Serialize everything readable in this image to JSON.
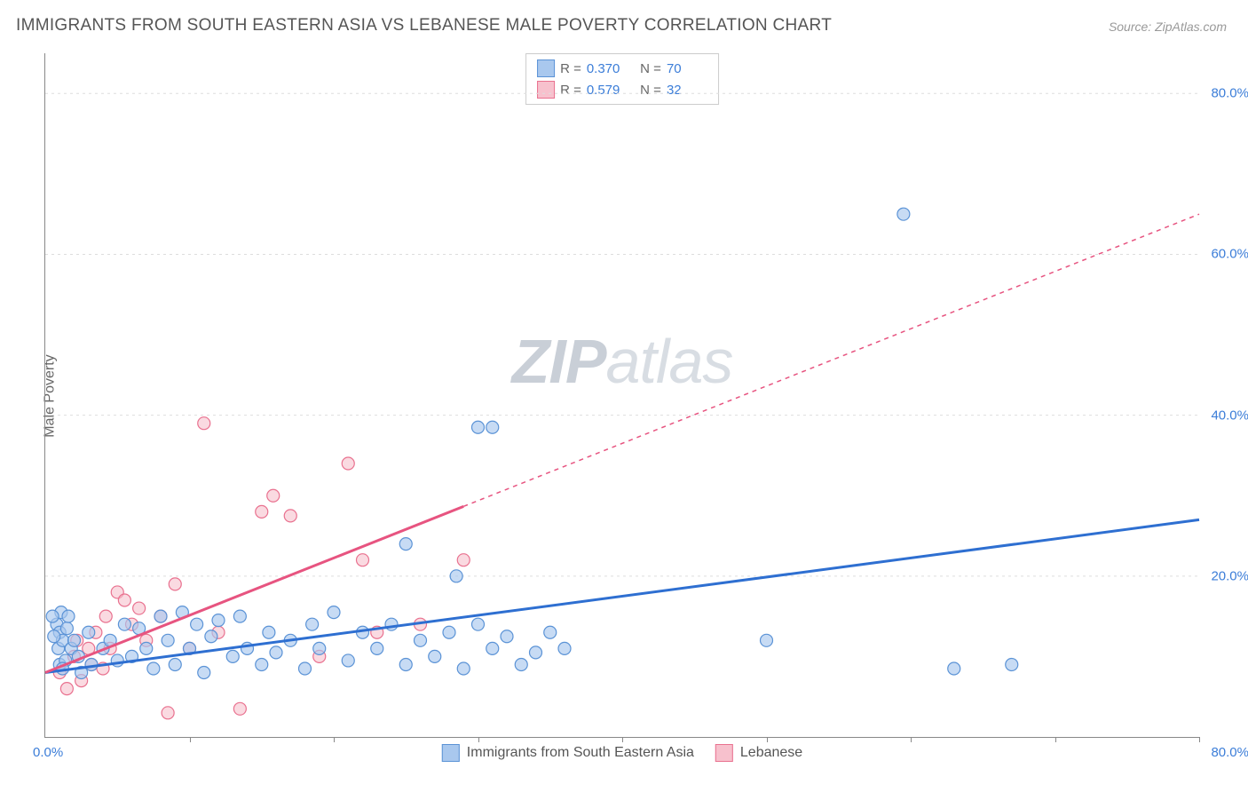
{
  "title": "IMMIGRANTS FROM SOUTH EASTERN ASIA VS LEBANESE MALE POVERTY CORRELATION CHART",
  "source": "Source: ZipAtlas.com",
  "ylabel": "Male Poverty",
  "watermark_zip": "ZIP",
  "watermark_atlas": "atlas",
  "chart": {
    "type": "scatter",
    "xlim": [
      0,
      80
    ],
    "ylim": [
      0,
      85
    ],
    "xtick_labels": {
      "min": "0.0%",
      "max": "80.0%"
    },
    "ytick_positions": [
      20,
      40,
      60,
      80
    ],
    "ytick_labels": [
      "20.0%",
      "40.0%",
      "60.0%",
      "80.0%"
    ],
    "xtick_minor_positions": [
      10,
      20,
      30,
      40,
      50,
      60,
      70,
      80
    ],
    "background_color": "#ffffff",
    "grid_color": "#dddddd",
    "axis_color": "#888888",
    "tick_label_color": "#3b7dd8",
    "label_color": "#666666",
    "title_color": "#555555",
    "marker_radius": 7,
    "marker_stroke_width": 1.2,
    "trend_line_width": 3,
    "series": [
      {
        "name": "Immigrants from South Eastern Asia",
        "fill_color": "#a9c8ee",
        "stroke_color": "#5b93d6",
        "fill_opacity": 0.65,
        "R": "0.370",
        "N": "70",
        "trend": {
          "x1": 0,
          "y1": 8,
          "x2": 80,
          "y2": 27,
          "color": "#2e6fd1",
          "solid_until_x": 80
        },
        "points": [
          [
            0.8,
            14
          ],
          [
            0.9,
            11
          ],
          [
            1.0,
            13
          ],
          [
            1.1,
            15.5
          ],
          [
            1.0,
            9
          ],
          [
            1.2,
            12
          ],
          [
            1.4,
            9.5
          ],
          [
            1.5,
            13.5
          ],
          [
            1.2,
            8.5
          ],
          [
            1.8,
            11
          ],
          [
            2.0,
            12
          ],
          [
            1.6,
            15
          ],
          [
            2.3,
            10
          ],
          [
            2.5,
            8
          ],
          [
            3.0,
            13
          ],
          [
            3.2,
            9
          ],
          [
            0.5,
            15
          ],
          [
            0.6,
            12.5
          ],
          [
            4.0,
            11
          ],
          [
            4.5,
            12
          ],
          [
            5.0,
            9.5
          ],
          [
            5.5,
            14
          ],
          [
            6.0,
            10
          ],
          [
            6.5,
            13.5
          ],
          [
            7.0,
            11
          ],
          [
            7.5,
            8.5
          ],
          [
            8.0,
            15
          ],
          [
            8.5,
            12
          ],
          [
            9.0,
            9
          ],
          [
            9.5,
            15.5
          ],
          [
            10.0,
            11
          ],
          [
            10.5,
            14
          ],
          [
            11.0,
            8
          ],
          [
            11.5,
            12.5
          ],
          [
            12.0,
            14.5
          ],
          [
            13.0,
            10
          ],
          [
            13.5,
            15
          ],
          [
            14.0,
            11
          ],
          [
            15.0,
            9
          ],
          [
            15.5,
            13
          ],
          [
            16.0,
            10.5
          ],
          [
            17.0,
            12
          ],
          [
            18.0,
            8.5
          ],
          [
            18.5,
            14
          ],
          [
            19.0,
            11
          ],
          [
            20.0,
            15.5
          ],
          [
            21.0,
            9.5
          ],
          [
            22.0,
            13
          ],
          [
            23.0,
            11
          ],
          [
            24.0,
            14
          ],
          [
            25.0,
            9
          ],
          [
            26.0,
            12
          ],
          [
            27.0,
            10
          ],
          [
            28.0,
            13
          ],
          [
            29.0,
            8.5
          ],
          [
            30.0,
            14
          ],
          [
            31.0,
            11
          ],
          [
            32.0,
            12.5
          ],
          [
            33.0,
            9
          ],
          [
            34.0,
            10.5
          ],
          [
            35.0,
            13
          ],
          [
            36.0,
            11
          ],
          [
            25.0,
            24
          ],
          [
            28.5,
            20
          ],
          [
            30.0,
            38.5
          ],
          [
            31.0,
            38.5
          ],
          [
            50.0,
            12
          ],
          [
            59.5,
            65
          ],
          [
            63.0,
            8.5
          ],
          [
            67.0,
            9
          ]
        ]
      },
      {
        "name": "Lebanese",
        "fill_color": "#f7c1cd",
        "stroke_color": "#e9718f",
        "fill_opacity": 0.6,
        "R": "0.579",
        "N": "32",
        "trend": {
          "x1": 0,
          "y1": 8,
          "x2": 80,
          "y2": 65,
          "color": "#e75480",
          "solid_until_x": 29
        },
        "points": [
          [
            1.0,
            8
          ],
          [
            1.5,
            6
          ],
          [
            2.0,
            10
          ],
          [
            2.2,
            12
          ],
          [
            2.5,
            7
          ],
          [
            3.0,
            11
          ],
          [
            3.2,
            9
          ],
          [
            3.5,
            13
          ],
          [
            4.0,
            8.5
          ],
          [
            4.2,
            15
          ],
          [
            4.5,
            11
          ],
          [
            5.0,
            18
          ],
          [
            5.5,
            17
          ],
          [
            6.0,
            14
          ],
          [
            6.5,
            16
          ],
          [
            7.0,
            12
          ],
          [
            8.0,
            15
          ],
          [
            8.5,
            3
          ],
          [
            9.0,
            19
          ],
          [
            10.0,
            11
          ],
          [
            11.0,
            39
          ],
          [
            12.0,
            13
          ],
          [
            13.5,
            3.5
          ],
          [
            15.0,
            28
          ],
          [
            15.8,
            30
          ],
          [
            17.0,
            27.5
          ],
          [
            19.0,
            10
          ],
          [
            21.0,
            34
          ],
          [
            22.0,
            22
          ],
          [
            23.0,
            13
          ],
          [
            26.0,
            14
          ],
          [
            29.0,
            22
          ]
        ]
      }
    ]
  },
  "legend_bottom": [
    {
      "label": "Immigrants from South Eastern Asia",
      "fill": "#a9c8ee",
      "stroke": "#5b93d6"
    },
    {
      "label": "Lebanese",
      "fill": "#f7c1cd",
      "stroke": "#e9718f"
    }
  ]
}
